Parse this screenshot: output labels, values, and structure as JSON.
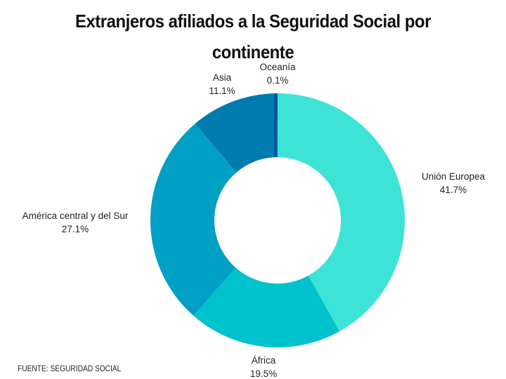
{
  "chart_data": {
    "type": "pie",
    "variant": "donut",
    "title": "Extranjeros afiliados a la Seguridad Social por continente",
    "title_lines": [
      "Extranjeros afiliados a la Seguridad Social por",
      "continente"
    ],
    "slices": [
      {
        "name": "Unión Europea",
        "value": 41.7,
        "label": "41.7%",
        "color": "#3de3d6"
      },
      {
        "name": "África",
        "value": 19.5,
        "label": "19.5%",
        "color": "#00c2cc"
      },
      {
        "name": "América central y del Sur",
        "value": 27.1,
        "label": "27.1%",
        "color": "#00a0c4"
      },
      {
        "name": "Asia",
        "value": 11.1,
        "label": "11.1%",
        "color": "#007bb0"
      },
      {
        "name": "Oceanía",
        "value": 0.1,
        "label": "0.1%",
        "color": "#0658a0"
      }
    ],
    "start": "top",
    "direction": "clockwise",
    "legend": "none"
  },
  "source": "FUENTE: SEGURIDAD SOCIAL"
}
